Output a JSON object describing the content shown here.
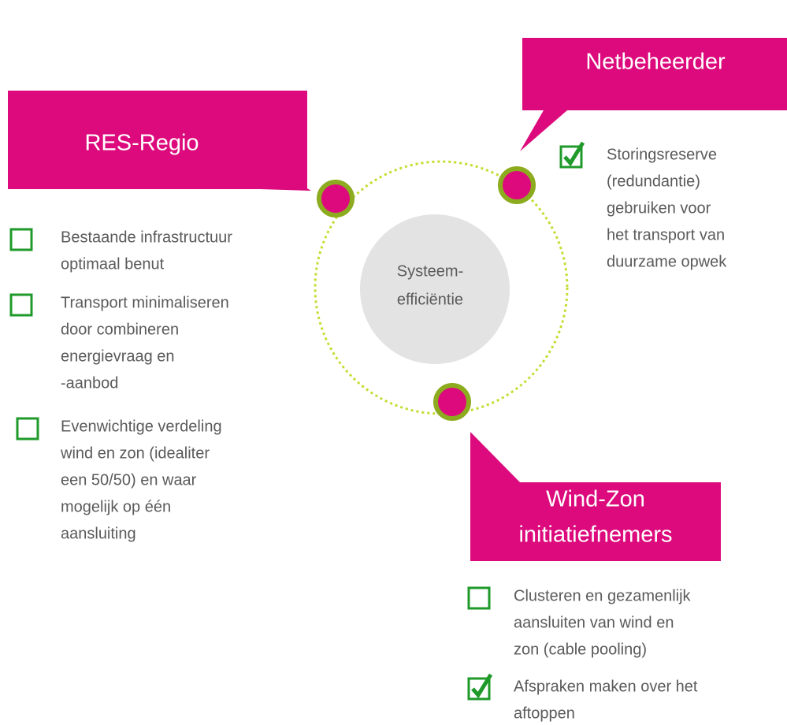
{
  "center": {
    "lines": [
      "Systeem-",
      "efficiëntie"
    ]
  },
  "sections": [
    {
      "title": [
        "Netbeheerder"
      ],
      "items": [
        {
          "checked": true,
          "lines": [
            "Storingsreserve",
            "(redundantie)",
            "gebruiken voor",
            "het transport van",
            "duurzame opwek"
          ]
        }
      ]
    },
    {
      "title": [
        "RES-Regio"
      ],
      "items": [
        {
          "checked": false,
          "lines": [
            "Bestaande infrastructuur",
            "optimaal benut"
          ]
        },
        {
          "checked": false,
          "lines": [
            "Transport minimaliseren",
            "door combineren",
            "energievraag en",
            "-aanbod"
          ]
        },
        {
          "checked": false,
          "lines": [
            "Evenwichtige verdeling",
            "wind en zon (idealiter",
            "een 50/50) en waar",
            "mogelijk op één",
            "aansluiting"
          ]
        }
      ]
    },
    {
      "title": [
        "Wind-Zon",
        "initiatiefnemers"
      ],
      "items": [
        {
          "checked": false,
          "lines": [
            "Clusteren en gezamenlijk",
            "aansluiten van wind en",
            "zon (cable pooling)"
          ]
        },
        {
          "checked": true,
          "lines": [
            "Afspraken maken over het",
            "aftoppen"
          ]
        }
      ]
    }
  ]
}
